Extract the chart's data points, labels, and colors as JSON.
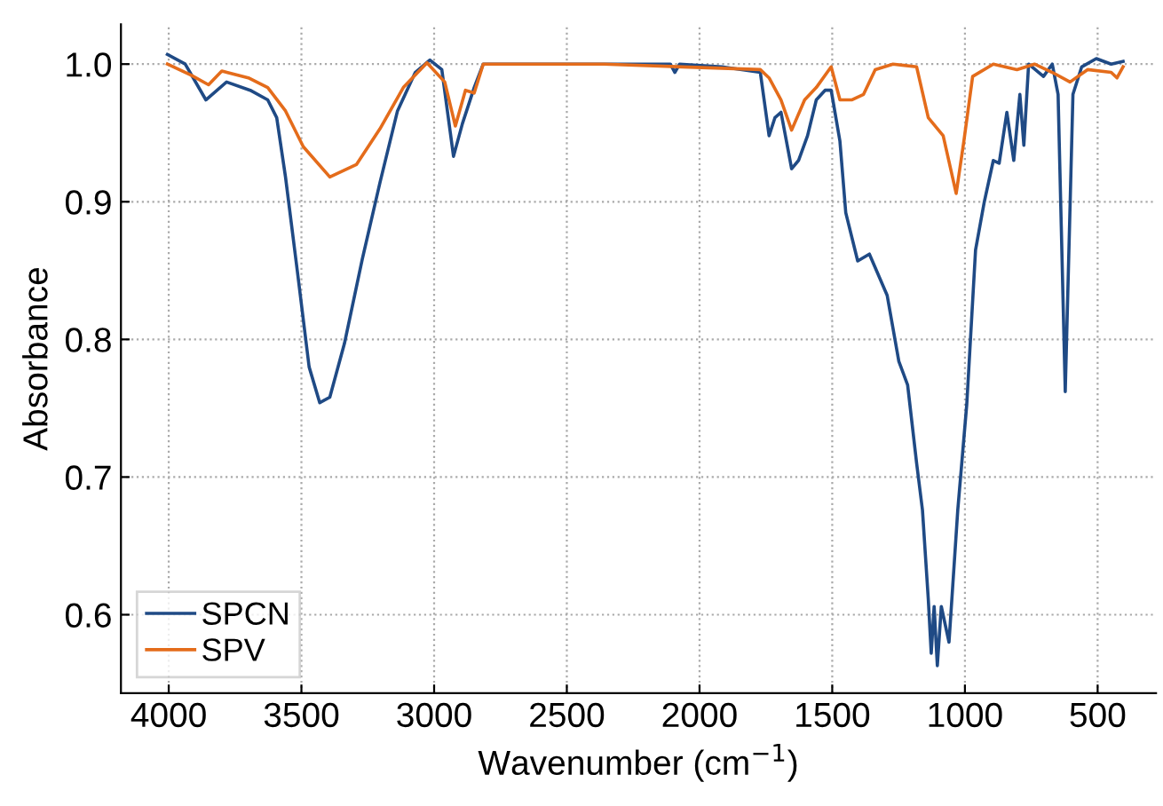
{
  "chart_data": {
    "type": "line",
    "xlabel": "Wavenumber (cm$^{−1}$)",
    "ylabel": "Absorbance",
    "xlim": [
      4180,
      280
    ],
    "xticks": [
      4000,
      3500,
      3000,
      2500,
      2000,
      1500,
      1000,
      500
    ],
    "ylim": [
      0.543,
      1.029
    ],
    "yticks": [
      {
        "value": 0.6,
        "label": "0.6"
      },
      {
        "value": 0.7,
        "label": "0.7"
      },
      {
        "value": 0.8,
        "label": "0.8"
      },
      {
        "value": 0.9,
        "label": "0.9"
      },
      {
        "value": 1.0,
        "label": "1.0"
      }
    ],
    "grid": true,
    "legend": "bottom left",
    "line_style": "solid",
    "marker": "none",
    "series": [
      {
        "name": "SPCN",
        "color": "#1f4a85",
        "x": [
          4005,
          3938,
          3860,
          3782,
          3693,
          3627,
          3593,
          3560,
          3515,
          3471,
          3431,
          3393,
          3338,
          3271,
          3204,
          3138,
          3071,
          3016,
          2971,
          2927,
          2893,
          2849,
          2815,
          2110,
          2093,
          2075,
          1916,
          1771,
          1738,
          1716,
          1693,
          1653,
          1627,
          1593,
          1560,
          1527,
          1504,
          1471,
          1449,
          1404,
          1360,
          1293,
          1249,
          1216,
          1182,
          1160,
          1138,
          1127,
          1116,
          1104,
          1089,
          1060,
          1027,
          993,
          960,
          927,
          893,
          871,
          842,
          816,
          793,
          778,
          760,
          704,
          671,
          649,
          622,
          593,
          560,
          505,
          449,
          404
        ],
        "values": [
          1.007,
          1.0,
          0.974,
          0.987,
          0.981,
          0.974,
          0.961,
          0.918,
          0.849,
          0.78,
          0.754,
          0.758,
          0.797,
          0.858,
          0.914,
          0.966,
          0.994,
          1.003,
          0.996,
          0.933,
          0.957,
          0.983,
          1.0,
          1.0,
          0.994,
          1.0,
          0.998,
          0.994,
          0.948,
          0.961,
          0.965,
          0.924,
          0.93,
          0.948,
          0.974,
          0.981,
          0.981,
          0.944,
          0.892,
          0.857,
          0.862,
          0.832,
          0.784,
          0.767,
          0.71,
          0.676,
          0.611,
          0.572,
          0.606,
          0.563,
          0.606,
          0.58,
          0.676,
          0.753,
          0.865,
          0.9,
          0.93,
          0.928,
          0.965,
          0.93,
          0.978,
          0.941,
          1.0,
          0.991,
          1.0,
          0.978,
          0.762,
          0.978,
          0.998,
          1.004,
          1.0,
          1.002
        ]
      },
      {
        "name": "SPV",
        "color": "#e46c1b",
        "x": [
          4005,
          3916,
          3850,
          3800,
          3700,
          3627,
          3560,
          3493,
          3393,
          3293,
          3204,
          3116,
          3027,
          2960,
          2920,
          2882,
          2849,
          2815,
          2360,
          1771,
          1738,
          1693,
          1653,
          1604,
          1560,
          1504,
          1471,
          1427,
          1382,
          1338,
          1271,
          1182,
          1138,
          1082,
          1033,
          1004,
          971,
          893,
          804,
          738,
          671,
          604,
          538,
          449,
          427,
          404
        ],
        "values": [
          1.0,
          0.992,
          0.985,
          0.995,
          0.99,
          0.983,
          0.966,
          0.94,
          0.918,
          0.927,
          0.953,
          0.983,
          1.001,
          0.987,
          0.955,
          0.981,
          0.979,
          1.0,
          1.0,
          0.996,
          0.99,
          0.974,
          0.952,
          0.974,
          0.983,
          0.998,
          0.974,
          0.974,
          0.978,
          0.996,
          1.0,
          0.998,
          0.961,
          0.948,
          0.906,
          0.944,
          0.991,
          1.0,
          0.996,
          1.0,
          0.994,
          0.987,
          0.996,
          0.994,
          0.99,
          0.998
        ]
      }
    ]
  }
}
